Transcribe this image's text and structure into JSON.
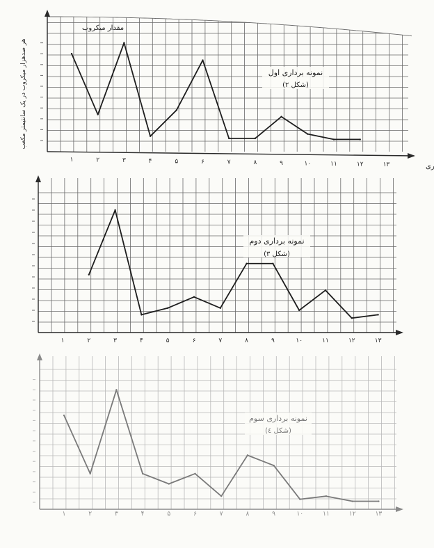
{
  "chart_data": [
    {
      "type": "line",
      "title": "نمونه برداری اول",
      "subtitle": "(شکل ۲)",
      "ylabel": "مقدار میکروب",
      "ylabel_side": "هر صدهزار میکروب در یک سانتیمتر مکعب",
      "xlabel": "محل نمونه‌برداری",
      "categories": [
        "۱",
        "۲",
        "۳",
        "۴",
        "۵",
        "۶",
        "۷",
        "۸",
        "۹",
        "۱۰",
        "۱۱",
        "۱۲",
        "۱۳"
      ],
      "x": [
        1,
        2,
        3,
        4,
        5,
        6,
        7,
        8,
        9,
        10,
        11,
        12,
        13
      ],
      "values": [
        8,
        2.4,
        9,
        0.4,
        2.8,
        7.4,
        0.2,
        0.2,
        2.2,
        0.6,
        0.1,
        0.1,
        null
      ],
      "ylim": [
        0,
        9
      ],
      "grid": true,
      "color": "#1e1e1e"
    },
    {
      "type": "line",
      "title": "نمونه برداری دوم",
      "subtitle": "(شکل ۳)",
      "categories": [
        "۱",
        "۲",
        "۳",
        "۴",
        "۵",
        "۶",
        "۷",
        "۸",
        "۹",
        "۱۰",
        "۱۱",
        "۱۲",
        "۱۳"
      ],
      "x": [
        1,
        2,
        3,
        4,
        5,
        6,
        7,
        8,
        9,
        10,
        11,
        12,
        13
      ],
      "values": [
        null,
        4.2,
        10,
        0.6,
        1.2,
        2.2,
        1.2,
        5.2,
        5.2,
        1,
        2.8,
        0.3,
        0.6
      ],
      "ylim": [
        0,
        10
      ],
      "grid": true,
      "color": "#1e1e1e"
    },
    {
      "type": "line",
      "title": "نمونه برداری سوم",
      "subtitle": "(شکل ٤)",
      "categories": [
        "۱",
        "۲",
        "۳",
        "۴",
        "۵",
        "۶",
        "۷",
        "۸",
        "۹",
        "۱۰",
        "۱۱",
        "۱۲",
        "۱۳"
      ],
      "x": [
        1,
        2,
        3,
        4,
        5,
        6,
        7,
        8,
        9,
        10,
        11,
        12,
        13
      ],
      "values": [
        8.5,
        2.8,
        11,
        2.8,
        1.8,
        2.8,
        0.6,
        4.6,
        3.6,
        0.3,
        0.6,
        0.1,
        0.1
      ],
      "ylim": [
        0,
        11
      ],
      "grid": true,
      "color": "#7a7a7a"
    }
  ]
}
